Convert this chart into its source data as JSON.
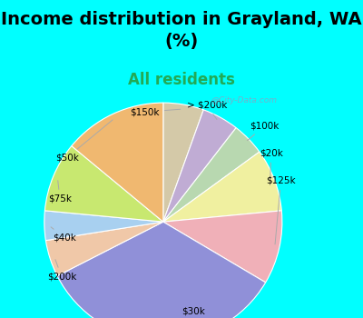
{
  "title": "Income distribution in Grayland, WA\n(%)",
  "subtitle": "All residents",
  "title_fontsize": 14,
  "subtitle_fontsize": 12,
  "background_cyan": "#00FFFF",
  "watermark": "@City-Data.com",
  "labels": [
    "$150k",
    "> $200k",
    "$100k",
    "$20k",
    "$125k",
    "$30k",
    "$200k",
    "$40k",
    "$75k",
    "$50k"
  ],
  "values": [
    5.5,
    5.0,
    4.5,
    8.5,
    10.0,
    34.0,
    5.0,
    4.0,
    9.5,
    14.0
  ],
  "colors": [
    "#d4c9a8",
    "#c0acd4",
    "#b8d8b0",
    "#f0f0a0",
    "#f0b0b8",
    "#9090d8",
    "#f0c8a8",
    "#a8d0f0",
    "#c8e870",
    "#f0b870"
  ],
  "start_angle": 90,
  "chart_bg_color": "#e8f5ee"
}
